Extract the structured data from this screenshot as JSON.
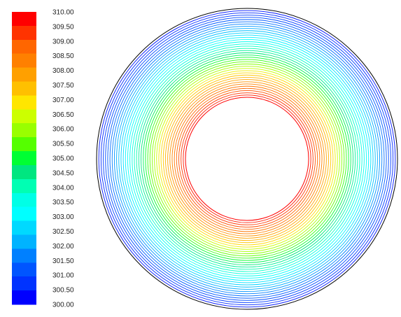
{
  "chart_data": {
    "type": "contour",
    "title": "",
    "colorbar": {
      "min": 300.0,
      "max": 310.0,
      "step": 0.5,
      "tick_labels": [
        "310.00",
        "309.50",
        "309.00",
        "308.50",
        "308.00",
        "307.50",
        "307.00",
        "306.50",
        "306.00",
        "305.50",
        "305.00",
        "304.50",
        "304.00",
        "303.50",
        "303.00",
        "302.50",
        "302.00",
        "301.50",
        "301.00",
        "300.50",
        "300.00"
      ],
      "colors": [
        "#ff0000",
        "#ff3300",
        "#ff6600",
        "#ff8000",
        "#ffa000",
        "#ffc000",
        "#ffe600",
        "#ccff00",
        "#99ff00",
        "#55ff00",
        "#00ff33",
        "#00e680",
        "#00ffb3",
        "#00ffe6",
        "#00ffff",
        "#00d9ff",
        "#00b3ff",
        "#0080ff",
        "#0055ff",
        "#0033ff",
        "#0000ff"
      ]
    },
    "annulus": {
      "inner_value": 310.0,
      "peak_value": 307.0,
      "outer_value": 300.0,
      "contour_levels": 40
    }
  }
}
